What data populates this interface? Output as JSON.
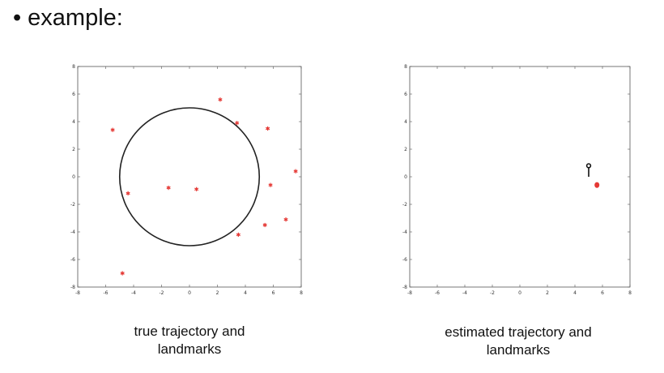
{
  "heading": {
    "bullet": "•",
    "text": "example:"
  },
  "chart_data": [
    {
      "type": "scatter",
      "caption_lines": [
        "true trajectory and",
        "landmarks"
      ],
      "xlim": [
        -8,
        8
      ],
      "ylim": [
        -8,
        8
      ],
      "xticks": [
        "-8",
        "-6",
        "-4",
        "-2",
        "0",
        "2",
        "4",
        "6",
        "8"
      ],
      "yticks": [
        "8",
        "6",
        "4",
        "2",
        "0",
        "-2",
        "-4",
        "-6",
        "-8"
      ],
      "grid": false,
      "circle": {
        "center": [
          0,
          0
        ],
        "radius": 5,
        "color": "#222222"
      },
      "landmarks": {
        "marker": "star",
        "color": "#e53935",
        "points": [
          [
            -5.5,
            3.4
          ],
          [
            2.2,
            5.6
          ],
          [
            3.4,
            3.9
          ],
          [
            5.6,
            3.5
          ],
          [
            7.6,
            0.4
          ],
          [
            5.8,
            -0.6
          ],
          [
            -4.4,
            -1.2
          ],
          [
            -1.5,
            -0.8
          ],
          [
            0.5,
            -0.9
          ],
          [
            6.9,
            -3.1
          ],
          [
            5.4,
            -3.5
          ],
          [
            3.5,
            -4.2
          ],
          [
            -4.8,
            -7.0
          ]
        ]
      }
    },
    {
      "type": "scatter",
      "caption_lines": [
        "estimated trajectory and",
        "landmarks"
      ],
      "xlim": [
        -8,
        8
      ],
      "ylim": [
        -8,
        8
      ],
      "xticks": [
        "-8",
        "-6",
        "-4",
        "-2",
        "0",
        "2",
        "4",
        "6",
        "8"
      ],
      "yticks": [
        "8",
        "6",
        "4",
        "2",
        "0",
        "-2",
        "-4",
        "-6",
        "-8"
      ],
      "grid": false,
      "robot": {
        "position": [
          5.0,
          0.8
        ],
        "heading_to": [
          5.0,
          0.0
        ],
        "color": "#111111"
      },
      "estimated_landmarks": {
        "color": "#e53935",
        "points": [
          [
            5.6,
            -0.6
          ]
        ]
      }
    }
  ]
}
